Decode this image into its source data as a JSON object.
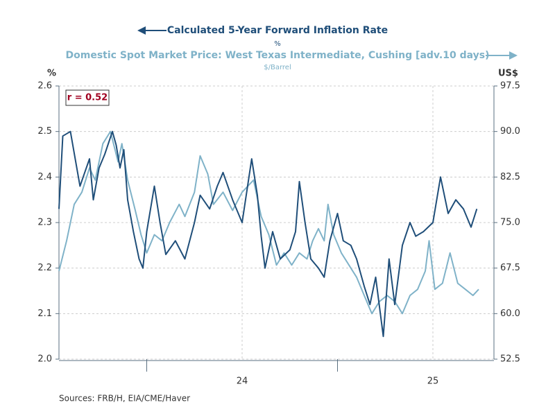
{
  "chart_data": {
    "type": "line",
    "series": [
      {
        "name": "Calculated 5-Year Forward Inflation Rate",
        "unit": "%",
        "color": "#1f4e79",
        "axis": "y",
        "x": [
          2023.54,
          2023.56,
          2023.6,
          2023.65,
          2023.7,
          2023.72,
          2023.75,
          2023.78,
          2023.82,
          2023.84,
          2023.86,
          2023.88,
          2023.9,
          2023.93,
          2023.96,
          2023.98,
          2024.0,
          2024.04,
          2024.07,
          2024.1,
          2024.15,
          2024.2,
          2024.25,
          2024.28,
          2024.33,
          2024.37,
          2024.4,
          2024.45,
          2024.5,
          2024.55,
          2024.58,
          2024.6,
          2024.62,
          2024.66,
          2024.7,
          2024.75,
          2024.78,
          2024.8,
          2024.83,
          2024.86,
          2024.9,
          2024.93,
          2024.96,
          2025.0,
          2025.03,
          2025.07,
          2025.1,
          2025.14,
          2025.17,
          2025.2,
          2025.24,
          2025.27,
          2025.3,
          2025.34,
          2025.38,
          2025.41,
          2025.45,
          2025.5,
          2025.54,
          2025.58,
          2025.62,
          2025.66,
          2025.7,
          2025.73
        ],
        "values": [
          2.33,
          2.49,
          2.5,
          2.38,
          2.44,
          2.35,
          2.42,
          2.45,
          2.5,
          2.47,
          2.42,
          2.46,
          2.35,
          2.28,
          2.22,
          2.2,
          2.28,
          2.38,
          2.3,
          2.23,
          2.26,
          2.22,
          2.3,
          2.36,
          2.33,
          2.38,
          2.41,
          2.35,
          2.3,
          2.44,
          2.36,
          2.27,
          2.2,
          2.28,
          2.22,
          2.24,
          2.28,
          2.39,
          2.3,
          2.22,
          2.2,
          2.18,
          2.26,
          2.32,
          2.26,
          2.25,
          2.22,
          2.16,
          2.12,
          2.18,
          2.05,
          2.22,
          2.12,
          2.25,
          2.3,
          2.27,
          2.28,
          2.3,
          2.4,
          2.32,
          2.35,
          2.33,
          2.29,
          2.33
        ]
      },
      {
        "name": "Domestic Spot Market Price: West Texas Intermediate, Cushing [adv.10 days)",
        "unit": "$/Barrel",
        "color": "#7fb2c8",
        "axis": "y2",
        "x": [
          2023.54,
          2023.58,
          2023.62,
          2023.66,
          2023.7,
          2023.73,
          2023.77,
          2023.81,
          2023.85,
          2023.87,
          2023.9,
          2023.94,
          2023.97,
          2024.0,
          2024.04,
          2024.08,
          2024.12,
          2024.17,
          2024.2,
          2024.25,
          2024.28,
          2024.32,
          2024.35,
          2024.4,
          2024.45,
          2024.5,
          2024.56,
          2024.6,
          2024.64,
          2024.68,
          2024.72,
          2024.76,
          2024.8,
          2024.84,
          2024.87,
          2024.9,
          2024.93,
          2024.95,
          2024.98,
          2025.02,
          2025.06,
          2025.1,
          2025.14,
          2025.18,
          2025.22,
          2025.26,
          2025.3,
          2025.34,
          2025.38,
          2025.42,
          2025.46,
          2025.48,
          2025.51,
          2025.55,
          2025.59,
          2025.63,
          2025.67,
          2025.71,
          2025.74
        ],
        "values": [
          67,
          72,
          78,
          80,
          84,
          82,
          88,
          90,
          85,
          88,
          82,
          77,
          73,
          70,
          73,
          72,
          75,
          78,
          76,
          80,
          86,
          83,
          78,
          80,
          77,
          80,
          82,
          76,
          73,
          68,
          70,
          68,
          70,
          69,
          72,
          74,
          72,
          78,
          73,
          70,
          68,
          66,
          63,
          60,
          62,
          63,
          62,
          60,
          63,
          64,
          67,
          72,
          64,
          65,
          70,
          65,
          64,
          63,
          64
        ]
      }
    ],
    "ylabel": "%",
    "y2label": "US$",
    "xlim": [
      2023.54,
      2025.82
    ],
    "xticks": [
      {
        "value": 2024.5,
        "label": "24"
      },
      {
        "value": 2025.5,
        "label": "25"
      }
    ],
    "xboundaries": [
      2024,
      2025
    ],
    "ylim": [
      2.0,
      2.6
    ],
    "yticks": [
      {
        "value": 2.0,
        "label": "2.0"
      },
      2.1,
      2.2,
      2.3,
      2.4,
      2.5,
      2.6
    ],
    "y2lim": [
      52.5,
      97.5
    ],
    "y2ticks": [
      52.5,
      {
        "value": 60,
        "label": "60.0"
      },
      67.5,
      {
        "value": 75,
        "label": "75.0"
      },
      82.5,
      {
        "value": 90,
        "label": "90.0"
      },
      97.5
    ],
    "grid": true,
    "annotation": "r = 0.52",
    "source": "Sources:  FRB/H, EIA/CME/Haver"
  }
}
